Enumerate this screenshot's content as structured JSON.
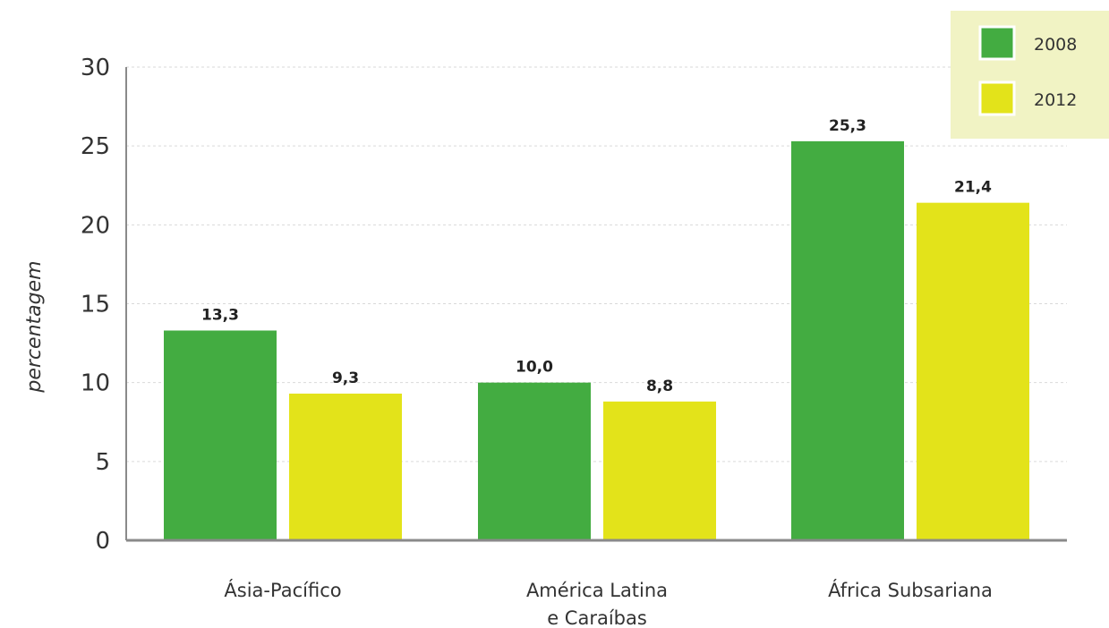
{
  "chart_data": {
    "type": "bar",
    "title": "",
    "xlabel": "",
    "ylabel": "percentagem",
    "ylim": [
      0,
      30
    ],
    "yticks": [
      0,
      5,
      10,
      15,
      20,
      25,
      30
    ],
    "grid": true,
    "legend_position": "top-right",
    "categories": [
      [
        "Ásia-Pacífico"
      ],
      [
        "América Latina",
        "e Caraíbas"
      ],
      [
        "África Subsariana"
      ]
    ],
    "series": [
      {
        "name": "2008",
        "color": "#43ac41",
        "values": [
          13.3,
          10.0,
          25.3
        ],
        "labels": [
          "13,3",
          "10,0",
          "25,3"
        ]
      },
      {
        "name": "2012",
        "color": "#e3e31a",
        "values": [
          9.3,
          8.8,
          21.4
        ],
        "labels": [
          "9,3",
          "8,8",
          "21,4"
        ]
      }
    ],
    "legend_background": "#f1f3c4",
    "grid_color": "#d9d9d9",
    "axis_color": "#8a8a8a"
  }
}
